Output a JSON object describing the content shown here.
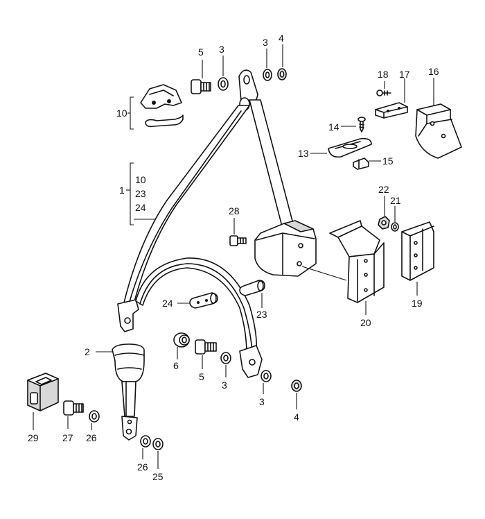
{
  "labels": {
    "l1": "1",
    "l2": "2",
    "l3a": "3",
    "l3b": "3",
    "l3c": "3",
    "l3d": "3",
    "l4a": "4",
    "l4b": "4",
    "l5a": "5",
    "l5b": "5",
    "l6": "6",
    "l10a": "10",
    "l10b": "10",
    "l13": "13",
    "l14": "14",
    "l15": "15",
    "l16": "16",
    "l17": "17",
    "l18": "18",
    "l19": "19",
    "l20": "20",
    "l21": "21",
    "l22": "22",
    "l23a": "23",
    "l23b": "23",
    "l24a": "24",
    "l24b": "24",
    "l25": "25",
    "l26a": "26",
    "l26b": "26",
    "l27": "27",
    "l28": "28",
    "l29": "29"
  }
}
